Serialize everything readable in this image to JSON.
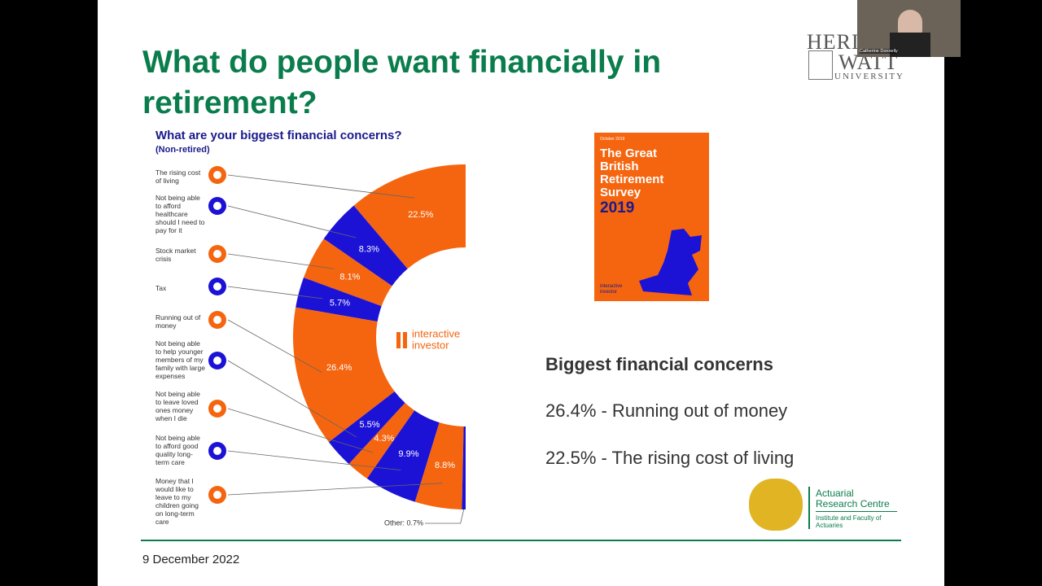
{
  "slide": {
    "title": "What do people want financially in retirement?",
    "date": "9 December 2022",
    "summary": {
      "heading": "Biggest financial concerns",
      "items": [
        "26.4% - Running out of money",
        "22.5% - The rising cost of living"
      ]
    },
    "book": {
      "date": "October 2019",
      "title": "The Great British Retirement Survey",
      "year": "2019",
      "brand": "interactive investor"
    },
    "university": {
      "line1": "HERIOT",
      "line2": "WATT",
      "line3": "UNIVERSITY"
    },
    "arc": {
      "name": "Actuarial Research Centre",
      "sub": "Institute and Faculty of Actuaries"
    },
    "webcam": {
      "name": "Catherine Donnelly"
    }
  },
  "chart_data": {
    "type": "donut",
    "title": "What are your biggest financial concerns?",
    "subtitle": "(Non-retired)",
    "center_label": [
      "interactive",
      "investor"
    ],
    "categories": [
      "The rising cost of living",
      "Not being able to afford healthcare should I need to pay for it",
      "Stock market crisis",
      "Tax",
      "Running out of money",
      "Not being able to help younger members of my family with large expenses",
      "Not being able to leave loved ones money when I die",
      "Not being able to afford good quality long-term care",
      "Money that I would like to leave to my children going on long-term care",
      null
    ],
    "values": [
      22.5,
      8.3,
      8.1,
      5.7,
      26.4,
      5.5,
      4.3,
      9.9,
      8.8,
      0.7
    ],
    "value_labels": [
      "22.5%",
      "8.3%",
      "8.1%",
      "5.7%",
      "26.4%",
      "5.5%",
      "4.3%",
      "9.9%",
      "8.8%",
      "Other: 0.7%"
    ],
    "colors": [
      "#f5650f",
      "#1c12d6",
      "#f5650f",
      "#1c12d6",
      "#f5650f",
      "#1c12d6",
      "#f5650f",
      "#1c12d6",
      "#f5650f",
      "#1c12d6"
    ]
  }
}
